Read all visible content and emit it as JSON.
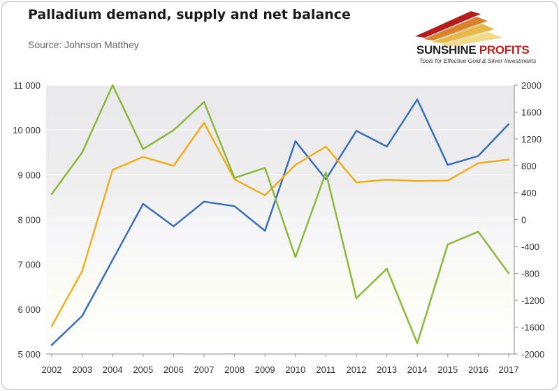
{
  "header": {
    "title": "Palladium demand, supply and net balance",
    "source": "Source: Johnson Matthey"
  },
  "logo": {
    "brand_main": "SUNSHINE",
    "brand_accent": "PROFITS",
    "tagline": "Tools for Effective Gold & Silver Investments"
  },
  "chart_data": {
    "type": "line",
    "title": "Palladium demand, supply and net balance",
    "x": [
      "2002",
      "2003",
      "2004",
      "2005",
      "2006",
      "2007",
      "2008",
      "2009",
      "2010",
      "2011",
      "2012",
      "2013",
      "2014",
      "2015",
      "2016",
      "2017"
    ],
    "y_left": {
      "min": 5000,
      "max": 11000,
      "ticks": [
        "5 000",
        "6 000",
        "7 000",
        "8 000",
        "9 000",
        "10 000",
        "11 000"
      ]
    },
    "y_right": {
      "min": -2000,
      "max": 2000,
      "ticks": [
        "-2000",
        "-1600",
        "-1200",
        "-800",
        "-400",
        "0",
        "400",
        "800",
        "1200",
        "1600",
        "2000"
      ]
    },
    "grid": true,
    "legend": "none",
    "series": [
      {
        "axis": "left",
        "color": "#3a6fb7",
        "values": [
          5200,
          5850,
          7100,
          8350,
          7850,
          8400,
          8300,
          7750,
          9750,
          8900,
          9980,
          9630,
          10680,
          9220,
          9420,
          10130
        ]
      },
      {
        "axis": "left",
        "color": "#f0ad1c",
        "values": [
          5620,
          6850,
          9110,
          9400,
          9200,
          10160,
          8900,
          8540,
          9220,
          9630,
          8830,
          8890,
          8860,
          8870,
          9260,
          9340
        ]
      },
      {
        "axis": "right",
        "color": "#8cb83c",
        "values": [
          380,
          1000,
          2000,
          1050,
          1330,
          1750,
          620,
          770,
          -560,
          700,
          -1170,
          -730,
          -1840,
          -370,
          -180,
          -800
        ]
      }
    ]
  }
}
